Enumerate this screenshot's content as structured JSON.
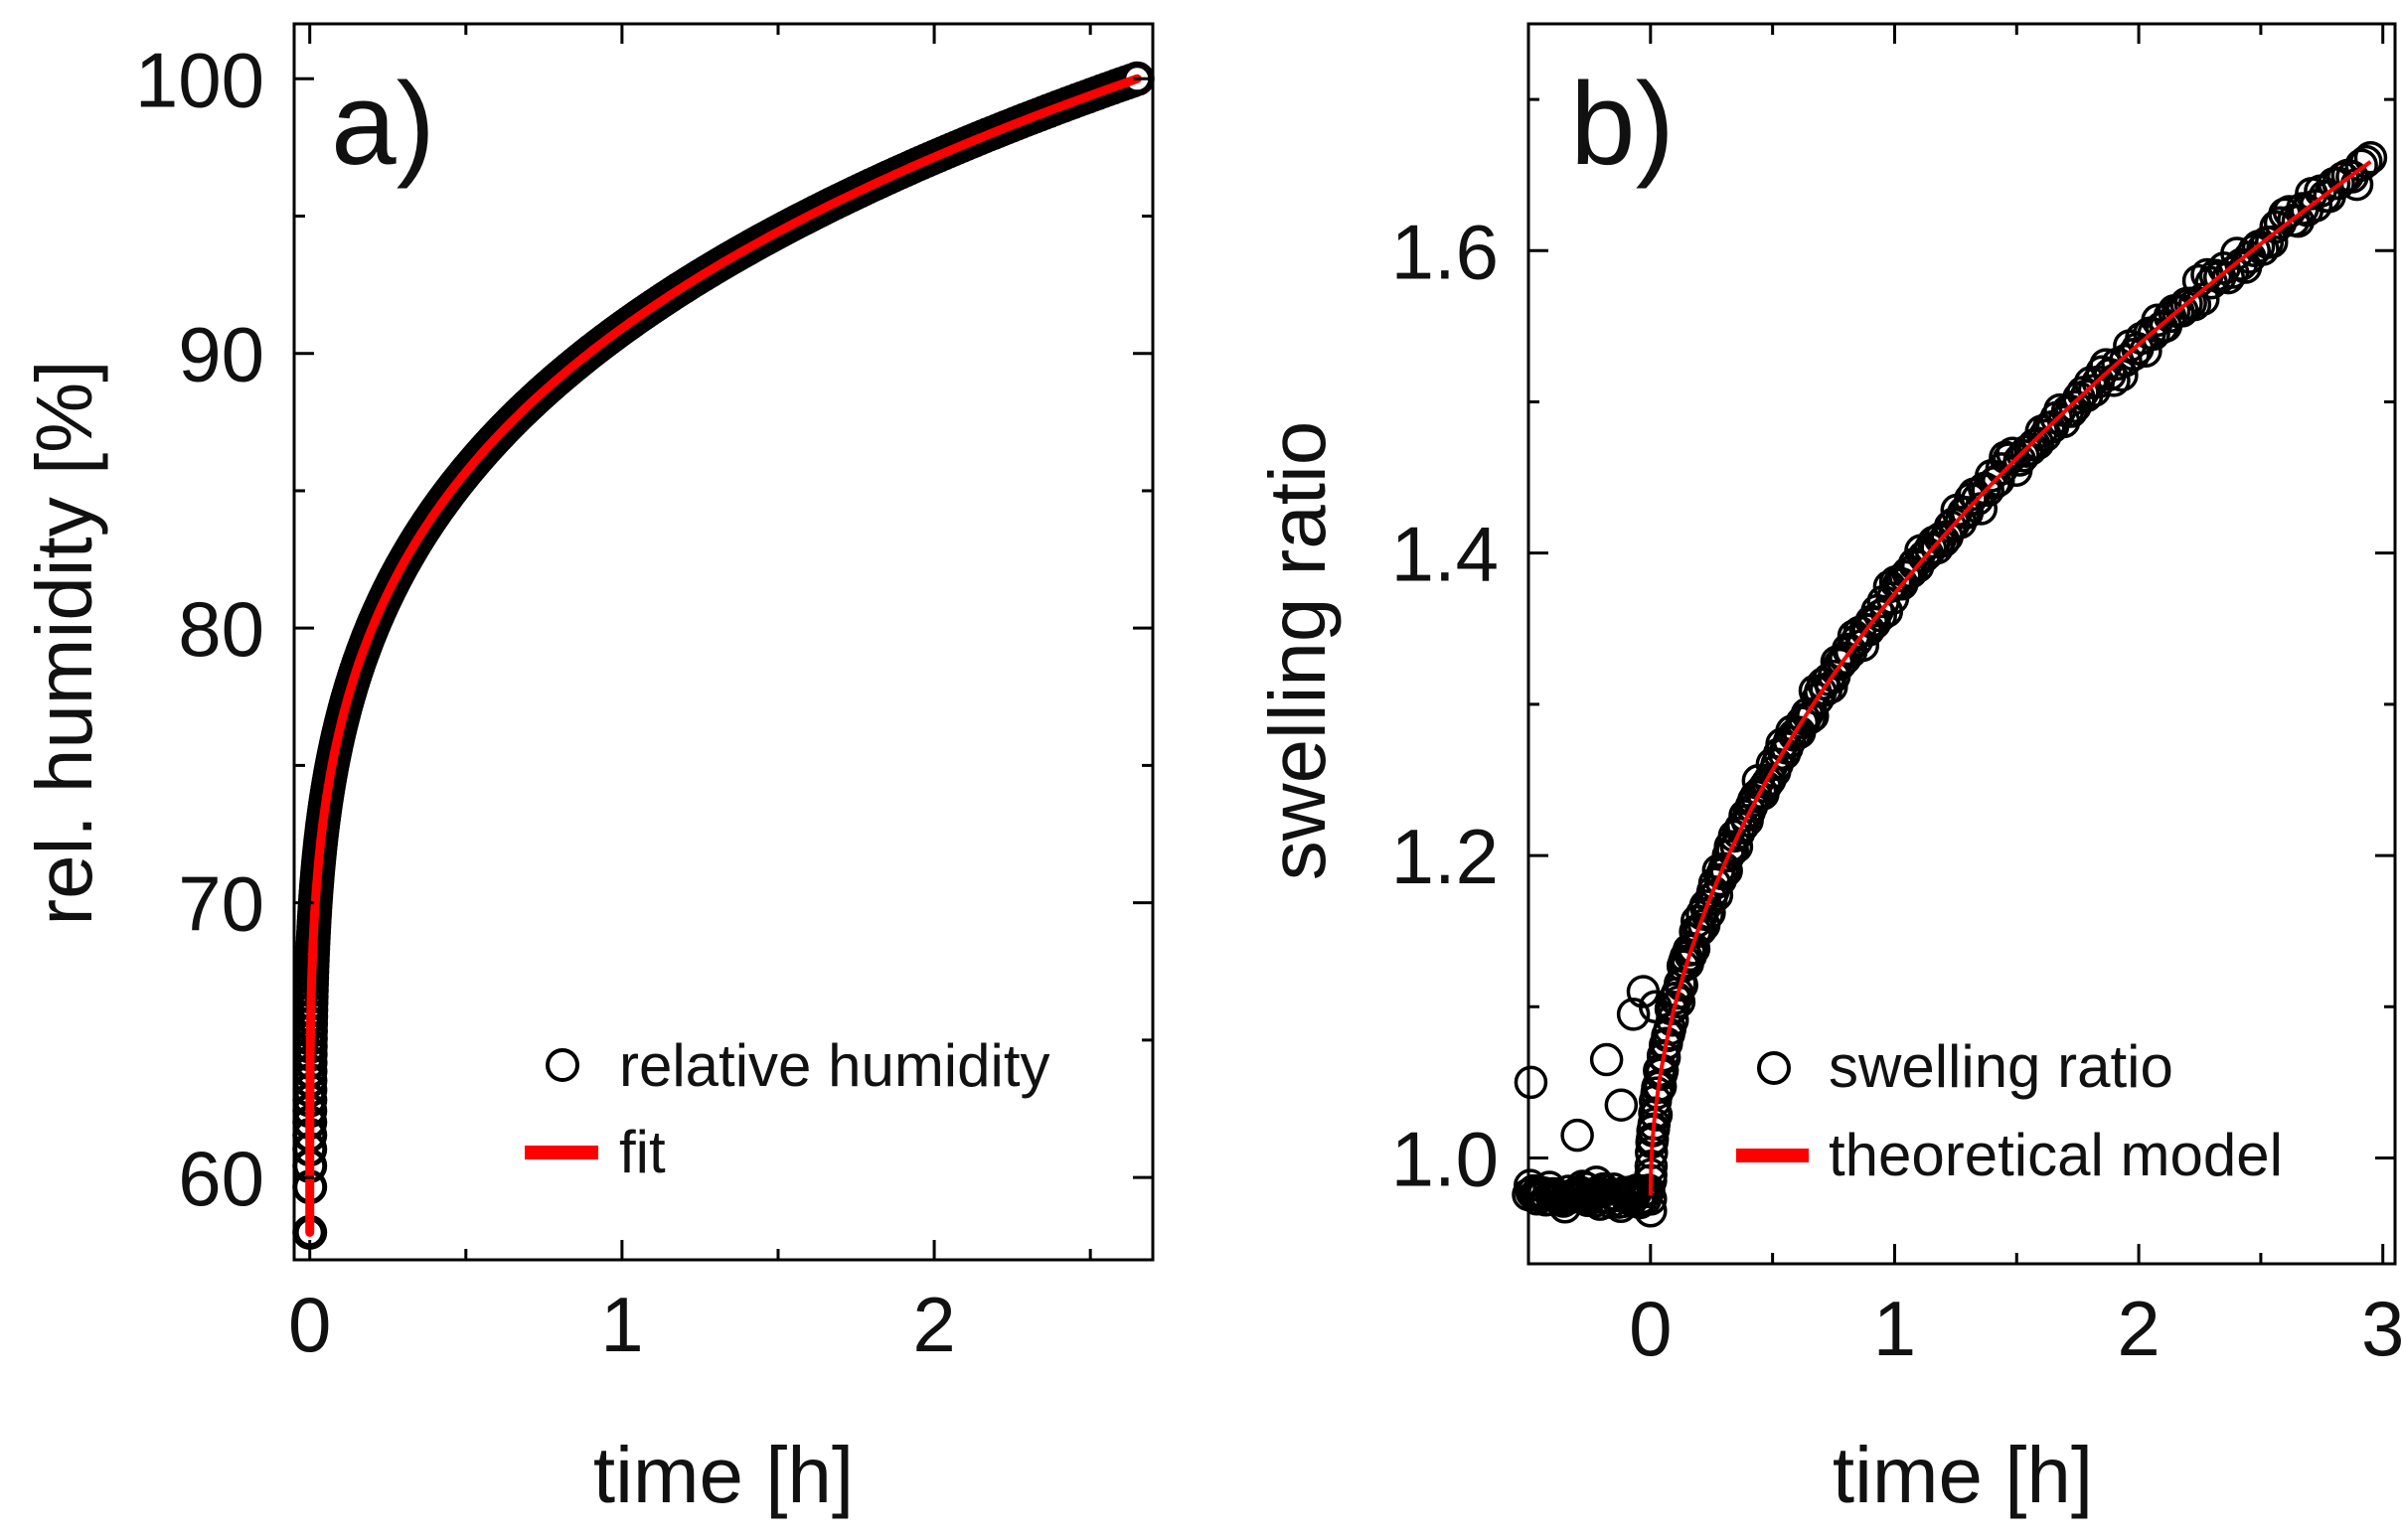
{
  "chart_data": [
    {
      "panel_label": "a)",
      "type": "scatter",
      "xlabel": "time [h]",
      "ylabel": "rel. humidity [%]",
      "xlim": [
        -0.05,
        2.7
      ],
      "ylim": [
        57,
        102
      ],
      "xticks": [
        0,
        1,
        2
      ],
      "yticks": [
        60,
        70,
        80,
        90,
        100
      ],
      "grid": false,
      "legend_position": "bottom-right",
      "series": [
        {
          "name": "relative humidity",
          "kind": "markers",
          "marker": "open-circle",
          "color": "#000000",
          "model": "rh(t) = 58 + 42*(t/2.65)^0.25",
          "x_range": [
            0.0,
            2.65
          ],
          "count": 360
        },
        {
          "name": "fit",
          "kind": "line",
          "color": "#ff0000",
          "model": "rh(t) = 58 + 42*(t/2.65)^0.25",
          "x_range": [
            0.0,
            2.65
          ],
          "count": 200
        }
      ],
      "highlight_points": [
        {
          "x": 0.0,
          "y": 58
        },
        {
          "x": 2.65,
          "y": 100
        }
      ]
    },
    {
      "panel_label": "b)",
      "type": "scatter",
      "xlabel": "time [h]",
      "ylabel": "swelling ratio",
      "xlim": [
        -0.5,
        3.05
      ],
      "ylim": [
        0.93,
        1.75
      ],
      "xticks": [
        0,
        1,
        2,
        3
      ],
      "yticks": [
        1.0,
        1.2,
        1.4,
        1.6
      ],
      "ytick_labels": [
        "1.0",
        "1.2",
        "1.4",
        "1.6"
      ],
      "grid": false,
      "legend_position": "bottom-right",
      "series": [
        {
          "name": "swelling ratio",
          "kind": "markers",
          "marker": "open-circle",
          "color": "#000000",
          "model": "s(t) = 0.975 for t<0; s(t) = 0.975 + 0.678*(t/2.9)^0.5 for t>=0",
          "x_range": [
            -0.5,
            2.95
          ],
          "count": 320,
          "scatter": 0.012
        },
        {
          "name": "theoretical model",
          "kind": "line",
          "color": "#ff0000",
          "model": "s(t) = 0.975 + 0.678*(t/2.9)^0.5",
          "x_range": [
            0.0,
            2.95
          ],
          "count": 200
        }
      ],
      "outlier_points": [
        {
          "x": -0.49,
          "y": 1.05
        },
        {
          "x": -0.3,
          "y": 1.015
        },
        {
          "x": -0.18,
          "y": 1.065
        },
        {
          "x": -0.12,
          "y": 1.035
        },
        {
          "x": -0.07,
          "y": 1.095
        },
        {
          "x": -0.03,
          "y": 1.11
        },
        {
          "x": 0.02,
          "y": 1.1
        },
        {
          "x": 0.0,
          "y": 0.965
        }
      ]
    }
  ]
}
